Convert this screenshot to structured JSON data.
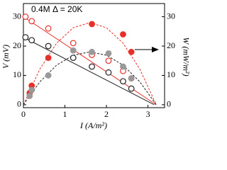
{
  "chart_data": {
    "type": "line",
    "annotation": "0.4M Δ = 20K",
    "xlabel": "I (A/m²)",
    "ylabel": "V (mV)",
    "y2label": "W (mW/m²)",
    "xlim": [
      0,
      3.4
    ],
    "xticks": [
      0,
      1,
      2,
      3
    ],
    "ylim": [
      -1,
      34.5
    ],
    "yticks": [
      0,
      10,
      20,
      30
    ],
    "y2lim": [
      -1,
      34.5
    ],
    "y2ticks": [
      0,
      10,
      20,
      30
    ],
    "series": [
      {
        "color": "#e8302a",
        "style": "solid",
        "x": [
          0,
          3.2
        ],
        "values": [
          30,
          0
        ]
      },
      {
        "color": "#222222",
        "style": "solid",
        "x": [
          0,
          3.15
        ],
        "values": [
          23,
          0
        ]
      },
      {
        "color": "#e8302a",
        "style": "dashed",
        "axis": "y2",
        "x": [
          0,
          0.4,
          0.8,
          1.2,
          1.6,
          2.0,
          2.4,
          2.8,
          3.2
        ],
        "values": [
          0,
          12.25,
          21,
          26.25,
          28,
          26.25,
          21,
          12.25,
          0
        ]
      },
      {
        "color": "#222222",
        "style": "dashed",
        "axis": "y2",
        "x": [
          0,
          0.4,
          0.8,
          1.2,
          1.6,
          2.0,
          2.4,
          2.8,
          3.2
        ],
        "values": [
          0,
          7.88,
          13.5,
          16.88,
          18,
          16.88,
          13.5,
          7.88,
          0
        ]
      },
      {
        "color": "#e8302a",
        "style": "open",
        "x": [
          0.05,
          0.2,
          0.6,
          1.2,
          1.65,
          2.05,
          2.4,
          2.6
        ],
        "values": [
          30,
          28.5,
          26,
          21,
          17,
          15,
          11.5,
          9
        ]
      },
      {
        "color": "#222222",
        "style": "open",
        "x": [
          0.05,
          0.2,
          0.6,
          1.2,
          1.65,
          2.05,
          2.4,
          2.6
        ],
        "values": [
          23,
          22,
          20,
          16,
          13,
          11,
          8,
          5.5
        ]
      },
      {
        "color": "#e8302a",
        "style": "filled",
        "axis": "y2",
        "x": [
          0.15,
          0.2,
          0.6,
          1.65,
          2.4,
          2.6
        ],
        "values": [
          4,
          6.5,
          16,
          27.5,
          24,
          18
        ]
      },
      {
        "color": "#999999",
        "style": "filled",
        "axis": "y2",
        "x": [
          0.15,
          0.2,
          0.6,
          1.2,
          1.65,
          2.05,
          2.4,
          2.6
        ],
        "values": [
          3,
          5,
          10,
          18.5,
          18,
          17.5,
          13,
          9
        ]
      }
    ]
  }
}
